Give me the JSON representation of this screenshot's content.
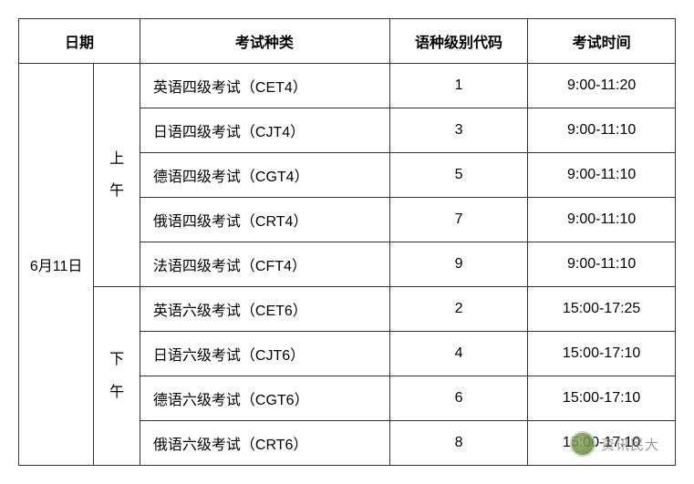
{
  "headers": {
    "date": "日期",
    "exam_type": "考试种类",
    "lang_code": "语种级别代码",
    "exam_time": "考试时间"
  },
  "date": "6月11日",
  "sessions": {
    "morning": "上\n午",
    "afternoon": "下\n午"
  },
  "rows": [
    {
      "exam": "英语四级考试（CET4）",
      "code": "1",
      "time": "9:00-11:20"
    },
    {
      "exam": "日语四级考试（CJT4）",
      "code": "3",
      "time": "9:00-11:10"
    },
    {
      "exam": "德语四级考试（CGT4）",
      "code": "5",
      "time": "9:00-11:10"
    },
    {
      "exam": "俄语四级考试（CRT4）",
      "code": "7",
      "time": "9:00-11:10"
    },
    {
      "exam": "法语四级考试（CFT4）",
      "code": "9",
      "time": "9:00-11:10"
    },
    {
      "exam": "英语六级考试（CET6）",
      "code": "2",
      "time": "15:00-17:25"
    },
    {
      "exam": "日语六级考试（CJT6）",
      "code": "4",
      "time": "15:00-17:10"
    },
    {
      "exam": "德语六级考试（CGT6）",
      "code": "6",
      "time": "15:00-17:10"
    },
    {
      "exam": "俄语六级考试（CRT6）",
      "code": "8",
      "time": "15:00-17:10"
    }
  ],
  "watermark": {
    "text": "资讯民大"
  }
}
